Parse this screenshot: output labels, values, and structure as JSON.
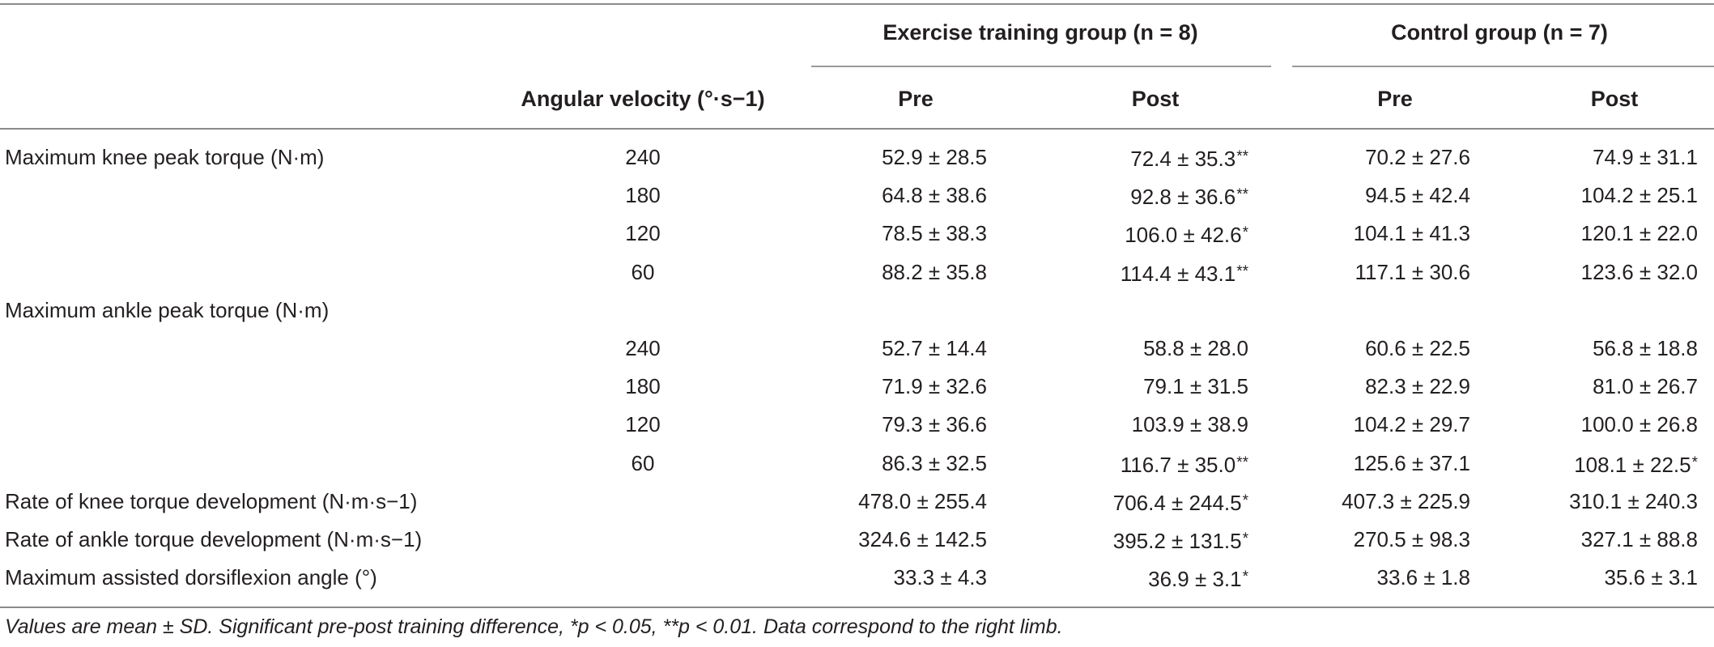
{
  "header": {
    "angular_velocity": "Angular velocity (°·s−1)",
    "exercise_group": "Exercise training group (n = 8)",
    "control_group": "Control group (n = 7)",
    "pre": "Pre",
    "post": "Post"
  },
  "rows": [
    {
      "label": "Maximum knee peak torque (N·m)",
      "vel": "240",
      "ex_pre": "52.9 ± 28.5",
      "ex_post": "72.4 ± 35.3**",
      "ct_pre": "70.2 ± 27.6",
      "ct_post": "74.9 ± 31.1"
    },
    {
      "label": "",
      "vel": "180",
      "ex_pre": "64.8 ± 38.6",
      "ex_post": "92.8 ± 36.6**",
      "ct_pre": "94.5 ± 42.4",
      "ct_post": "104.2 ± 25.1"
    },
    {
      "label": "",
      "vel": "120",
      "ex_pre": "78.5 ± 38.3",
      "ex_post": "106.0 ± 42.6*",
      "ct_pre": "104.1 ± 41.3",
      "ct_post": "120.1 ± 22.0"
    },
    {
      "label": "",
      "vel": "60",
      "ex_pre": "88.2 ± 35.8",
      "ex_post": "114.4 ± 43.1**",
      "ct_pre": "117.1 ± 30.6",
      "ct_post": "123.6 ± 32.0"
    },
    {
      "label": "Maximum ankle peak torque (N·m)",
      "vel": "",
      "ex_pre": "",
      "ex_post": "",
      "ct_pre": "",
      "ct_post": ""
    },
    {
      "label": "",
      "vel": "240",
      "ex_pre": "52.7 ± 14.4",
      "ex_post": "58.8 ± 28.0",
      "ct_pre": "60.6 ± 22.5",
      "ct_post": "56.8 ± 18.8"
    },
    {
      "label": "",
      "vel": "180",
      "ex_pre": "71.9 ± 32.6",
      "ex_post": "79.1 ± 31.5",
      "ct_pre": "82.3 ± 22.9",
      "ct_post": "81.0 ± 26.7"
    },
    {
      "label": "",
      "vel": "120",
      "ex_pre": "79.3 ± 36.6",
      "ex_post": "103.9 ± 38.9",
      "ct_pre": "104.2 ± 29.7",
      "ct_post": "100.0 ± 26.8"
    },
    {
      "label": "",
      "vel": "60",
      "ex_pre": "86.3 ± 32.5",
      "ex_post": "116.7 ± 35.0**",
      "ct_pre": "125.6 ± 37.1",
      "ct_post": "108.1 ± 22.5*"
    },
    {
      "label": "Rate of knee torque development (N·m·s−1)",
      "vel": "",
      "ex_pre": "478.0 ± 255.4",
      "ex_post": "706.4 ± 244.5*",
      "ct_pre": "407.3 ± 225.9",
      "ct_post": "310.1 ± 240.3"
    },
    {
      "label": "Rate of ankle torque development (N·m·s−1)",
      "vel": "",
      "ex_pre": "324.6 ± 142.5",
      "ex_post": "395.2 ± 131.5*",
      "ct_pre": "270.5 ± 98.3",
      "ct_post": "327.1 ± 88.8"
    },
    {
      "label": "Maximum assisted dorsiflexion angle (°)",
      "vel": "",
      "ex_pre": "33.3 ± 4.3",
      "ex_post": "36.9 ± 3.1*",
      "ct_pre": "33.6 ± 1.8",
      "ct_post": "35.6 ± 3.1"
    }
  ],
  "footnote": "Values are mean ± SD. Significant pre-post training difference, *p < 0.05, **p < 0.01. Data correspond to the right limb."
}
